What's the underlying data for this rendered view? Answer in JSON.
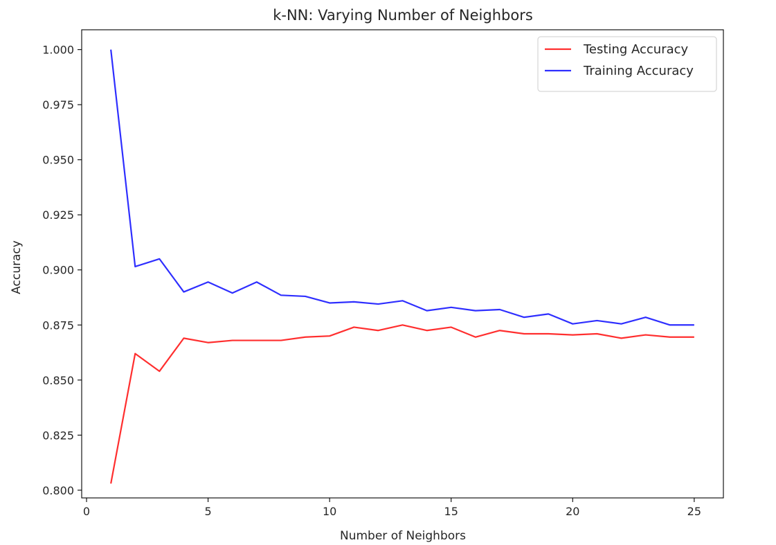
{
  "chart_data": {
    "type": "line",
    "title": "k-NN: Varying Number of Neighbors",
    "xlabel": "Number of Neighbors",
    "ylabel": "Accuracy",
    "xlim": [
      -0.2,
      26.2
    ],
    "ylim": [
      0.7965,
      1.009
    ],
    "xticks": [
      0,
      5,
      10,
      15,
      20,
      25
    ],
    "yticks": [
      0.8,
      0.825,
      0.85,
      0.875,
      0.9,
      0.925,
      0.95,
      0.975,
      1.0
    ],
    "ytick_labels": [
      "0.800",
      "0.825",
      "0.850",
      "0.875",
      "0.900",
      "0.925",
      "0.950",
      "0.975",
      "1.000"
    ],
    "grid": false,
    "legend_position": "top-right",
    "x": [
      1,
      2,
      3,
      4,
      5,
      6,
      7,
      8,
      9,
      10,
      11,
      12,
      13,
      14,
      15,
      16,
      17,
      18,
      19,
      20,
      21,
      22,
      23,
      24,
      25
    ],
    "series": [
      {
        "name": "Testing Accuracy",
        "color": "#ff0000",
        "values": [
          0.803,
          0.862,
          0.854,
          0.869,
          0.867,
          0.868,
          0.868,
          0.868,
          0.8695,
          0.87,
          0.874,
          0.8725,
          0.875,
          0.8725,
          0.874,
          0.8695,
          0.8725,
          0.871,
          0.871,
          0.8705,
          0.871,
          0.869,
          0.8705,
          0.8695,
          0.8695
        ]
      },
      {
        "name": "Training Accuracy",
        "color": "#0000ff",
        "values": [
          1.0,
          0.9015,
          0.905,
          0.89,
          0.8945,
          0.8895,
          0.8945,
          0.8885,
          0.888,
          0.885,
          0.8855,
          0.8845,
          0.886,
          0.8815,
          0.883,
          0.8815,
          0.882,
          0.8785,
          0.88,
          0.8755,
          0.877,
          0.8755,
          0.8785,
          0.875,
          0.875
        ]
      }
    ]
  }
}
